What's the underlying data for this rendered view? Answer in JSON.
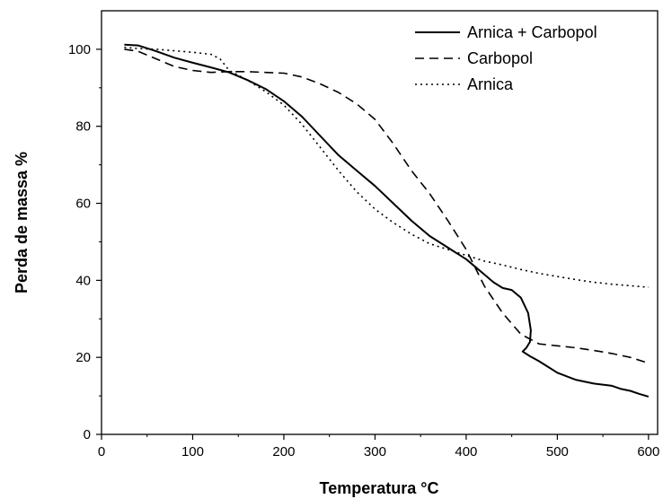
{
  "chart_data": {
    "type": "line",
    "xlabel": "Temperatura °C",
    "ylabel": "Perda de massa %",
    "xlim": [
      0,
      610
    ],
    "ylim": [
      0,
      110
    ],
    "xticks": [
      0,
      100,
      200,
      300,
      400,
      500,
      600
    ],
    "yticks": [
      0,
      20,
      40,
      60,
      80,
      100
    ],
    "grid": false,
    "legend_position": "top-right",
    "series": [
      {
        "name": "Arnica + Carbopol",
        "style": "solid",
        "color": "#000000",
        "points": [
          [
            25,
            101.2
          ],
          [
            40,
            101
          ],
          [
            60,
            99.5
          ],
          [
            80,
            97.8
          ],
          [
            100,
            96.5
          ],
          [
            120,
            95.3
          ],
          [
            140,
            94
          ],
          [
            160,
            92
          ],
          [
            180,
            89.7
          ],
          [
            200,
            86.5
          ],
          [
            220,
            82.5
          ],
          [
            240,
            77.5
          ],
          [
            260,
            72.5
          ],
          [
            280,
            68.5
          ],
          [
            300,
            64.5
          ],
          [
            320,
            60
          ],
          [
            340,
            55.5
          ],
          [
            360,
            51.5
          ],
          [
            380,
            48.5
          ],
          [
            400,
            45.5
          ],
          [
            410,
            43.5
          ],
          [
            420,
            41.5
          ],
          [
            430,
            39.5
          ],
          [
            440,
            38
          ],
          [
            450,
            37.5
          ],
          [
            460,
            35.5
          ],
          [
            468,
            31.5
          ],
          [
            471,
            27
          ],
          [
            470,
            24
          ],
          [
            466,
            22.5
          ],
          [
            462,
            21.5
          ],
          [
            470,
            20.3
          ],
          [
            480,
            19
          ],
          [
            490,
            17.5
          ],
          [
            500,
            16
          ],
          [
            520,
            14.2
          ],
          [
            540,
            13.2
          ],
          [
            560,
            12.6
          ],
          [
            570,
            11.8
          ],
          [
            580,
            11.3
          ],
          [
            590,
            10.5
          ],
          [
            600,
            9.8
          ]
        ]
      },
      {
        "name": "Carbopol",
        "style": "dashed",
        "color": "#000000",
        "points": [
          [
            25,
            100
          ],
          [
            40,
            99.5
          ],
          [
            60,
            97.5
          ],
          [
            80,
            95.5
          ],
          [
            100,
            94.5
          ],
          [
            120,
            94
          ],
          [
            140,
            94.2
          ],
          [
            160,
            94.2
          ],
          [
            180,
            94
          ],
          [
            200,
            93.8
          ],
          [
            220,
            92.8
          ],
          [
            240,
            91
          ],
          [
            260,
            88.8
          ],
          [
            280,
            85.8
          ],
          [
            300,
            81.8
          ],
          [
            320,
            75.5
          ],
          [
            340,
            68.5
          ],
          [
            360,
            62.5
          ],
          [
            380,
            55.5
          ],
          [
            400,
            48
          ],
          [
            420,
            38.5
          ],
          [
            440,
            31.5
          ],
          [
            460,
            26
          ],
          [
            480,
            23.5
          ],
          [
            500,
            23
          ],
          [
            520,
            22.5
          ],
          [
            540,
            21.8
          ],
          [
            560,
            21
          ],
          [
            580,
            20
          ],
          [
            600,
            18.5
          ]
        ]
      },
      {
        "name": "Arnica",
        "style": "dotted",
        "color": "#000000",
        "points": [
          [
            25,
            100.5
          ],
          [
            40,
            100.2
          ],
          [
            60,
            100
          ],
          [
            80,
            99.6
          ],
          [
            100,
            99.2
          ],
          [
            120,
            98.7
          ],
          [
            130,
            97.5
          ],
          [
            140,
            94.5
          ],
          [
            160,
            92
          ],
          [
            180,
            89
          ],
          [
            200,
            85.5
          ],
          [
            220,
            80.5
          ],
          [
            240,
            74.5
          ],
          [
            260,
            68.5
          ],
          [
            280,
            63
          ],
          [
            300,
            58.5
          ],
          [
            320,
            55
          ],
          [
            340,
            52
          ],
          [
            360,
            49.5
          ],
          [
            380,
            48
          ],
          [
            400,
            46.5
          ],
          [
            420,
            45
          ],
          [
            440,
            44
          ],
          [
            460,
            42.8
          ],
          [
            480,
            41.8
          ],
          [
            500,
            41
          ],
          [
            520,
            40.2
          ],
          [
            540,
            39.5
          ],
          [
            560,
            39
          ],
          [
            580,
            38.6
          ],
          [
            600,
            38.2
          ]
        ]
      }
    ]
  }
}
